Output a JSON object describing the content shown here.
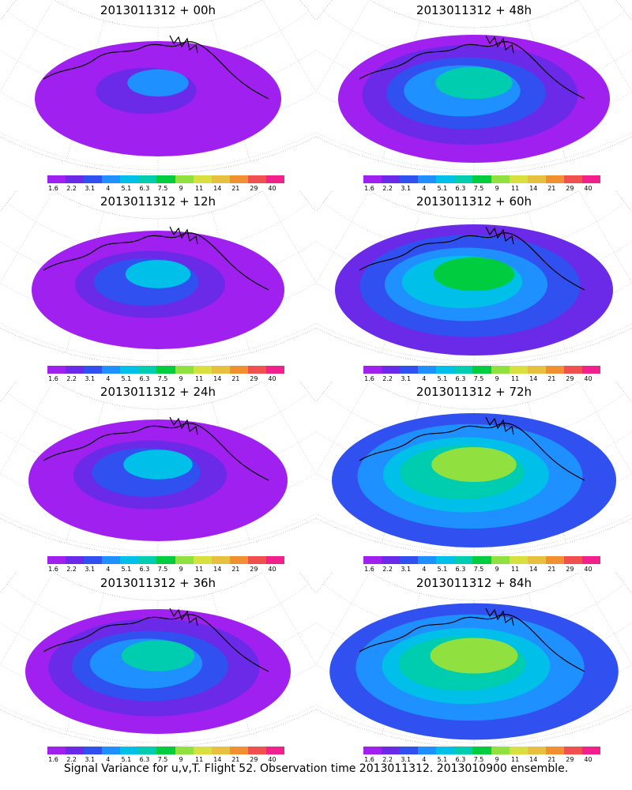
{
  "panels": [
    {
      "title": "2013011312 + 00h",
      "intensity": 0.15
    },
    {
      "title": "2013011312 + 48h",
      "intensity": 0.55
    },
    {
      "title": "2013011312 + 12h",
      "intensity": 0.25
    },
    {
      "title": "2013011312 + 60h",
      "intensity": 0.65
    },
    {
      "title": "2013011312 + 24h",
      "intensity": 0.35
    },
    {
      "title": "2013011312 + 72h",
      "intensity": 0.75
    },
    {
      "title": "2013011312 + 36h",
      "intensity": 0.45
    },
    {
      "title": "2013011312 + 84h",
      "intensity": 0.82
    }
  ],
  "colorbar": {
    "labels": [
      "1.6",
      "2.2",
      "3.1",
      "4",
      "5.1",
      "6.3",
      "7.5",
      "9",
      "11",
      "14",
      "21",
      "29",
      "40"
    ],
    "colors": [
      "#a020f0",
      "#6a2ae8",
      "#3050f0",
      "#1e90ff",
      "#00bfe8",
      "#00ccb0",
      "#00cc40",
      "#90e040",
      "#d8e040",
      "#e8c040",
      "#f09030",
      "#f05050",
      "#f0208c"
    ]
  },
  "caption": "Signal Variance for u,v,T. Flight 52. Observation time 2013011312. 2013010900 ensemble."
}
